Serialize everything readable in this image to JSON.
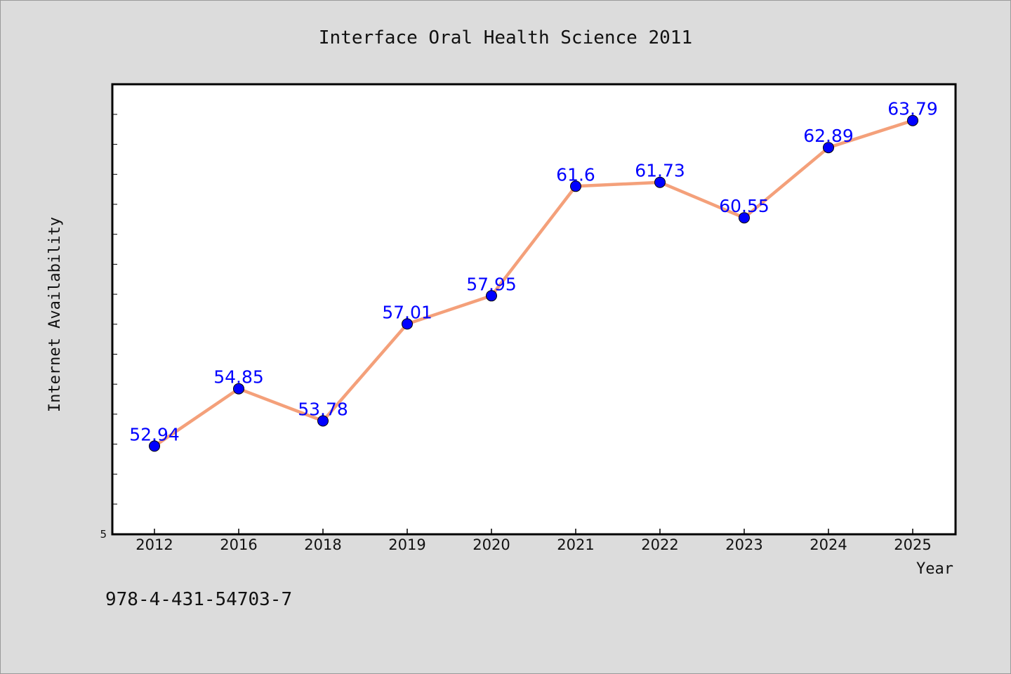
{
  "page": {
    "background": "#dcdcdc",
    "footer_code": "978-4-431-54703-7"
  },
  "chart_data": {
    "type": "line",
    "title": "Interface Oral Health Science 2011",
    "xlabel": "Year",
    "ylabel": "Internet Availability",
    "categories": [
      "2012",
      "2016",
      "2018",
      "2019",
      "2020",
      "2021",
      "2022",
      "2023",
      "2024",
      "2025"
    ],
    "series": [
      {
        "values": [
          52.94,
          54.85,
          53.78,
          57.01,
          57.95,
          61.6,
          61.73,
          60.55,
          62.89,
          63.79
        ],
        "value_labels": [
          "52.94",
          "54.85",
          "53.78",
          "57.01",
          "57.95",
          "61.6",
          "61.73",
          "60.55",
          "62.89",
          "63.79"
        ],
        "line_color": "#f4a07a",
        "marker_color": "#0000ff"
      }
    ],
    "y_tick_labels": [
      "5"
    ],
    "ylim": [
      50,
      65
    ],
    "grid": false,
    "legend": "none",
    "label_color": "#0000ff"
  }
}
